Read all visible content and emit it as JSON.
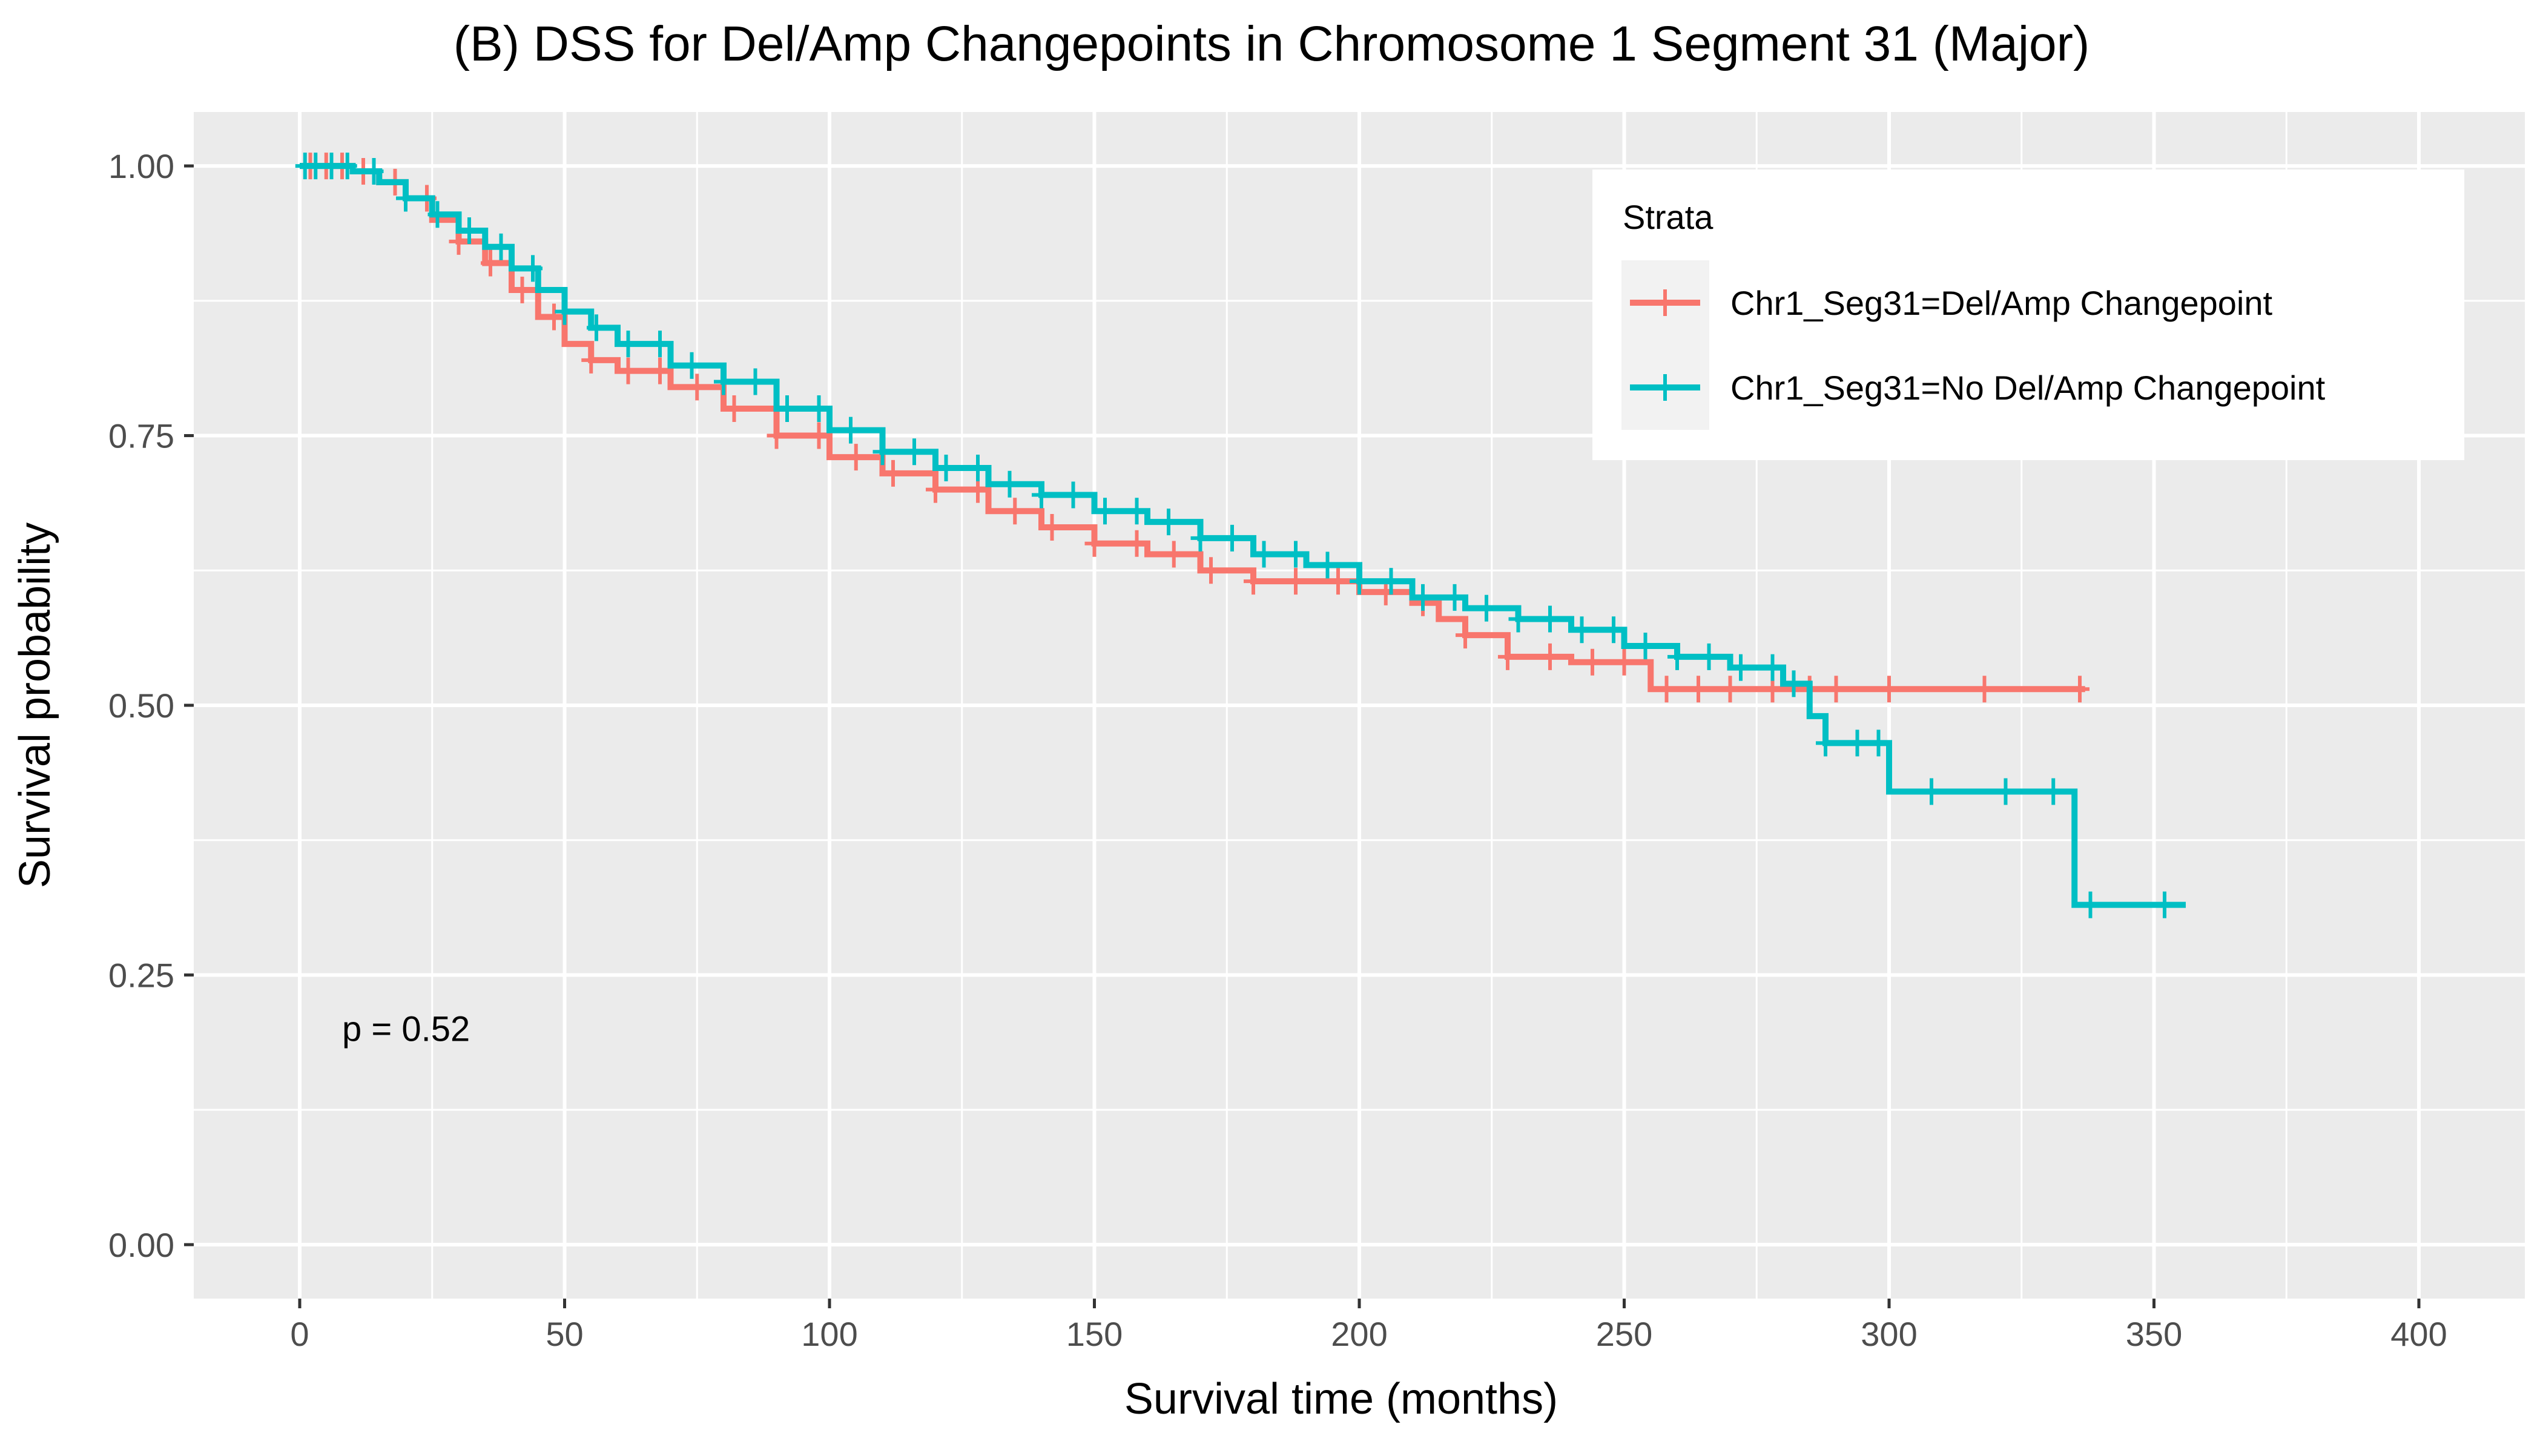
{
  "chart_data": {
    "type": "line",
    "title": "(B) DSS for Del/Amp Changepoints in Chromosome 1 Segment 31 (Major)",
    "xlabel": "Survival time (months)",
    "ylabel": "Survival probability",
    "xlim": [
      -20,
      420
    ],
    "ylim": [
      -0.05,
      1.05
    ],
    "x_ticks": [
      0,
      50,
      100,
      150,
      200,
      250,
      300,
      350,
      400
    ],
    "x_tick_labels": [
      "0",
      "50",
      "100",
      "150",
      "200",
      "250",
      "300",
      "350",
      "400"
    ],
    "y_ticks": [
      0,
      0.25,
      0.5,
      0.75,
      1.0
    ],
    "y_tick_labels": [
      "0.00",
      "0.25",
      "0.50",
      "0.75",
      "1.00"
    ],
    "grid": true,
    "annotation": "p = 0.52",
    "annotation_position": [
      8,
      0.2
    ],
    "legend": {
      "title": "Strata",
      "position": "top-right"
    },
    "series": [
      {
        "name": "Chr1_Seg31=Del/Amp Changepoint",
        "color": "#F8766D",
        "steps": [
          [
            0,
            1.0
          ],
          [
            10,
            0.995
          ],
          [
            15,
            0.985
          ],
          [
            20,
            0.97
          ],
          [
            25,
            0.95
          ],
          [
            30,
            0.93
          ],
          [
            35,
            0.91
          ],
          [
            40,
            0.885
          ],
          [
            45,
            0.86
          ],
          [
            50,
            0.835
          ],
          [
            55,
            0.82
          ],
          [
            60,
            0.81
          ],
          [
            70,
            0.795
          ],
          [
            80,
            0.775
          ],
          [
            90,
            0.75
          ],
          [
            100,
            0.73
          ],
          [
            110,
            0.715
          ],
          [
            120,
            0.7
          ],
          [
            130,
            0.68
          ],
          [
            140,
            0.665
          ],
          [
            150,
            0.65
          ],
          [
            160,
            0.64
          ],
          [
            170,
            0.625
          ],
          [
            180,
            0.615
          ],
          [
            200,
            0.605
          ],
          [
            210,
            0.595
          ],
          [
            215,
            0.58
          ],
          [
            220,
            0.565
          ],
          [
            228,
            0.545
          ],
          [
            240,
            0.54
          ],
          [
            255,
            0.515
          ],
          [
            275,
            0.515
          ],
          [
            337,
            0.515
          ]
        ],
        "censor_x": [
          2,
          5,
          8,
          12,
          18,
          24,
          30,
          36,
          42,
          48,
          55,
          62,
          68,
          75,
          82,
          90,
          98,
          105,
          112,
          120,
          128,
          135,
          142,
          150,
          158,
          165,
          172,
          180,
          188,
          196,
          205,
          212,
          220,
          228,
          236,
          244,
          250,
          258,
          264,
          270,
          278,
          285,
          290,
          300,
          318,
          336
        ]
      },
      {
        "name": "Chr1_Seg31=No Del/Amp Changepoint",
        "color": "#00BFC4",
        "steps": [
          [
            0,
            1.0
          ],
          [
            10,
            0.995
          ],
          [
            15,
            0.985
          ],
          [
            20,
            0.97
          ],
          [
            25,
            0.955
          ],
          [
            30,
            0.94
          ],
          [
            35,
            0.925
          ],
          [
            40,
            0.905
          ],
          [
            45,
            0.885
          ],
          [
            50,
            0.865
          ],
          [
            55,
            0.85
          ],
          [
            60,
            0.835
          ],
          [
            70,
            0.815
          ],
          [
            80,
            0.8
          ],
          [
            90,
            0.775
          ],
          [
            100,
            0.755
          ],
          [
            110,
            0.735
          ],
          [
            120,
            0.72
          ],
          [
            130,
            0.705
          ],
          [
            140,
            0.695
          ],
          [
            150,
            0.68
          ],
          [
            160,
            0.67
          ],
          [
            170,
            0.655
          ],
          [
            180,
            0.64
          ],
          [
            190,
            0.63
          ],
          [
            200,
            0.615
          ],
          [
            210,
            0.6
          ],
          [
            220,
            0.59
          ],
          [
            230,
            0.58
          ],
          [
            240,
            0.57
          ],
          [
            250,
            0.555
          ],
          [
            260,
            0.545
          ],
          [
            270,
            0.535
          ],
          [
            280,
            0.52
          ],
          [
            285,
            0.49
          ],
          [
            288,
            0.465
          ],
          [
            300,
            0.42
          ],
          [
            335,
            0.315
          ],
          [
            356,
            0.315
          ]
        ],
        "censor_x": [
          1,
          3,
          6,
          9,
          14,
          20,
          26,
          32,
          38,
          44,
          50,
          56,
          62,
          68,
          74,
          80,
          86,
          92,
          98,
          104,
          110,
          116,
          122,
          128,
          134,
          140,
          146,
          152,
          158,
          164,
          170,
          176,
          182,
          188,
          194,
          200,
          206,
          212,
          218,
          224,
          230,
          236,
          242,
          248,
          254,
          260,
          266,
          272,
          278,
          282,
          288,
          294,
          298,
          308,
          322,
          331,
          338,
          352
        ]
      }
    ]
  }
}
